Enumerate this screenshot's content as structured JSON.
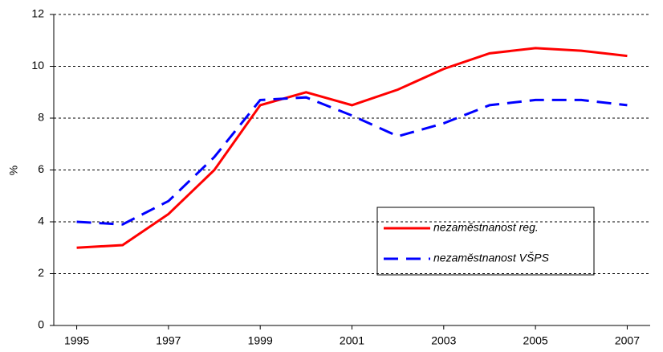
{
  "chart_data": {
    "type": "line",
    "ylabel": "%",
    "x": [
      1995,
      1996,
      1997,
      1998,
      1999,
      2000,
      2001,
      2002,
      2003,
      2004,
      2005,
      2006,
      2007
    ],
    "series": [
      {
        "name": "nezaměstnanost reg.",
        "color": "#ff0000",
        "dash": false,
        "values": [
          3.0,
          3.1,
          4.3,
          6.0,
          8.5,
          9.0,
          8.5,
          9.1,
          9.9,
          10.5,
          10.7,
          10.6,
          10.4
        ]
      },
      {
        "name": "nezaměstnanost VŠPS",
        "color": "#0000ff",
        "dash": true,
        "values": [
          4.0,
          3.9,
          4.8,
          6.5,
          8.7,
          8.8,
          8.1,
          7.3,
          7.8,
          8.5,
          8.7,
          8.7,
          8.5
        ]
      }
    ],
    "xlim": [
      1994.5,
      2007.5
    ],
    "xticks": [
      1995,
      1997,
      1999,
      2001,
      2003,
      2005,
      2007
    ],
    "ylim": [
      0,
      12
    ],
    "yticks": [
      0,
      2,
      4,
      6,
      8,
      10,
      12
    ],
    "grid": true
  }
}
